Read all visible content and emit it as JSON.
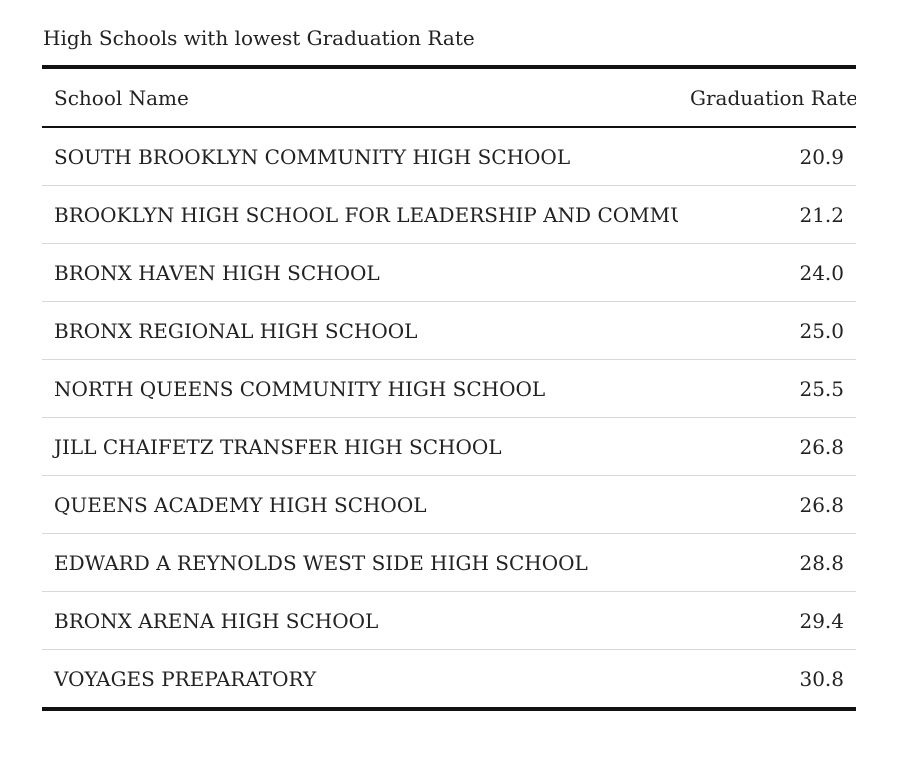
{
  "chart_data": {
    "type": "table",
    "title": "High Schools with lowest Graduation Rate",
    "columns": [
      "School Name",
      "Graduation Rate"
    ],
    "rows": [
      {
        "name": "SOUTH BROOKLYN COMMUNITY HIGH SCHOOL",
        "rate": "20.9"
      },
      {
        "name": "BROOKLYN HIGH SCHOOL FOR LEADERSHIP AND COMMUNITY",
        "rate": "21.2"
      },
      {
        "name": "BRONX HAVEN HIGH SCHOOL",
        "rate": "24.0"
      },
      {
        "name": "BRONX REGIONAL HIGH SCHOOL",
        "rate": "25.0"
      },
      {
        "name": "NORTH QUEENS COMMUNITY HIGH SCHOOL",
        "rate": "25.5"
      },
      {
        "name": "JILL CHAIFETZ TRANSFER HIGH SCHOOL",
        "rate": "26.8"
      },
      {
        "name": "QUEENS ACADEMY HIGH SCHOOL",
        "rate": "26.8"
      },
      {
        "name": "EDWARD A REYNOLDS WEST SIDE HIGH SCHOOL",
        "rate": "28.8"
      },
      {
        "name": "BRONX ARENA HIGH SCHOOL",
        "rate": "29.4"
      },
      {
        "name": "VOYAGES PREPARATORY",
        "rate": "30.8"
      }
    ]
  }
}
